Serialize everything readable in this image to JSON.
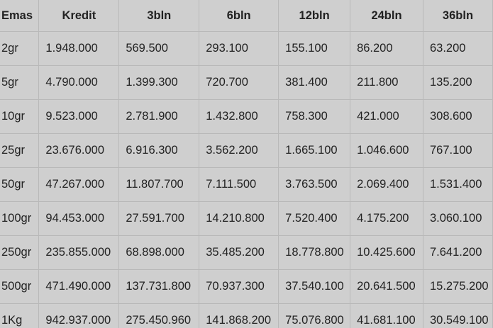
{
  "table": {
    "headers": [
      "Emas",
      "Kredit",
      "3bln",
      "6bln",
      "12bln",
      "24bln",
      "36bln"
    ],
    "rows": [
      [
        "2gr",
        "1.948.000",
        "569.500",
        "293.100",
        "155.100",
        "86.200",
        "63.200"
      ],
      [
        "5gr",
        "4.790.000",
        "1.399.300",
        "720.700",
        "381.400",
        "211.800",
        "135.200"
      ],
      [
        "10gr",
        "9.523.000",
        "2.781.900",
        "1.432.800",
        "758.300",
        "421.000",
        "308.600"
      ],
      [
        "25gr",
        "23.676.000",
        "6.916.300",
        "3.562.200",
        "1.665.100",
        "1.046.600",
        "767.100"
      ],
      [
        "50gr",
        "47.267.000",
        "11.807.700",
        "7.111.500",
        "3.763.500",
        "2.069.400",
        "1.531.400"
      ],
      [
        "100gr",
        "94.453.000",
        "27.591.700",
        "14.210.800",
        "7.520.400",
        "4.175.200",
        "3.060.100"
      ],
      [
        "250gr",
        "235.855.000",
        "68.898.000",
        "35.485.200",
        "18.778.800",
        "10.425.600",
        "7.641.200"
      ],
      [
        "500gr",
        "471.490.000",
        "137.731.800",
        "70.937.300",
        "37.540.100",
        "20.641.500",
        "15.275.200"
      ],
      [
        "1Kg",
        "942.937.000",
        "275.450.960",
        "141.868.200",
        "75.076.800",
        "41.681.100",
        "30.549.100"
      ]
    ]
  }
}
